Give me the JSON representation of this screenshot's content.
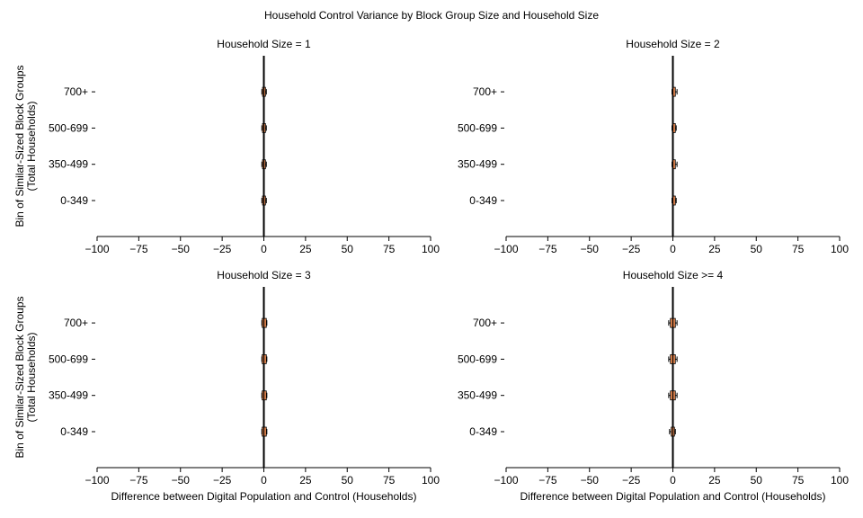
{
  "figure": {
    "title": "Household Control Variance by Block Group Size and Household Size"
  },
  "chart_data": [
    {
      "type": "boxplot",
      "title": "Household Size = 1",
      "xlabel": "",
      "ylabel": "Bin of Similar-Sized Block Groups\n(Total Households)",
      "xlim": [
        -100,
        100
      ],
      "xticks": [
        "−100",
        "−75",
        "−50",
        "−25",
        "0",
        "25",
        "50",
        "75",
        "100"
      ],
      "categories": [
        "0-349",
        "350-499",
        "500-699",
        "700+"
      ],
      "boxes": [
        {
          "category": "0-349",
          "q1": -0.8,
          "median": 0,
          "q3": 1.0,
          "whisker_low": -1.2,
          "whisker_high": 1.5
        },
        {
          "category": "350-499",
          "q1": -0.8,
          "median": 0,
          "q3": 1.0,
          "whisker_low": -1.2,
          "whisker_high": 1.5
        },
        {
          "category": "500-699",
          "q1": -0.8,
          "median": 0,
          "q3": 1.0,
          "whisker_low": -1.2,
          "whisker_high": 1.5
        },
        {
          "category": "700+",
          "q1": -0.8,
          "median": 0,
          "q3": 1.0,
          "whisker_low": -1.2,
          "whisker_high": 1.5
        }
      ]
    },
    {
      "type": "boxplot",
      "title": "Household Size = 2",
      "xlabel": "",
      "ylabel": "",
      "xlim": [
        -100,
        100
      ],
      "xticks": [
        "−100",
        "−75",
        "−50",
        "−25",
        "0",
        "25",
        "50",
        "75",
        "100"
      ],
      "categories": [
        "0-349",
        "350-499",
        "500-699",
        "700+"
      ],
      "boxes": [
        {
          "category": "0-349",
          "q1": -0.3,
          "median": 0,
          "q3": 1.5,
          "whisker_low": -0.5,
          "whisker_high": 2.0
        },
        {
          "category": "350-499",
          "q1": -0.3,
          "median": 0,
          "q3": 1.5,
          "whisker_low": -0.5,
          "whisker_high": 2.5
        },
        {
          "category": "500-699",
          "q1": -0.3,
          "median": 0,
          "q3": 1.5,
          "whisker_low": -0.5,
          "whisker_high": 2.0
        },
        {
          "category": "700+",
          "q1": -0.3,
          "median": 0,
          "q3": 1.5,
          "whisker_low": -0.5,
          "whisker_high": 2.5
        }
      ]
    },
    {
      "type": "boxplot",
      "title": "Household Size = 3",
      "xlabel": "Difference between Digital Population and Control (Households)",
      "ylabel": "Bin of Similar-Sized Block Groups\n(Total Households)",
      "xlim": [
        -100,
        100
      ],
      "xticks": [
        "−100",
        "−75",
        "−50",
        "−25",
        "0",
        "25",
        "50",
        "75",
        "100"
      ],
      "categories": [
        "0-349",
        "350-499",
        "500-699",
        "700+"
      ],
      "boxes": [
        {
          "category": "0-349",
          "q1": -1.0,
          "median": 0,
          "q3": 1.5,
          "whisker_low": -1.2,
          "whisker_high": 1.8
        },
        {
          "category": "350-499",
          "q1": -1.0,
          "median": 0,
          "q3": 1.5,
          "whisker_low": -1.2,
          "whisker_high": 1.8
        },
        {
          "category": "500-699",
          "q1": -1.0,
          "median": 0,
          "q3": 1.5,
          "whisker_low": -1.2,
          "whisker_high": 1.8
        },
        {
          "category": "700+",
          "q1": -1.0,
          "median": 0,
          "q3": 1.5,
          "whisker_low": -1.2,
          "whisker_high": 1.8
        }
      ]
    },
    {
      "type": "boxplot",
      "title": "Household Size >= 4",
      "xlabel": "Difference between Digital Population and Control (Households)",
      "ylabel": "",
      "xlim": [
        -100,
        100
      ],
      "xticks": [
        "−100",
        "−75",
        "−50",
        "−25",
        "0",
        "25",
        "50",
        "75",
        "100"
      ],
      "categories": [
        "0-349",
        "350-499",
        "500-699",
        "700+"
      ],
      "boxes": [
        {
          "category": "0-349",
          "q1": -1.0,
          "median": 0,
          "q3": 1.0,
          "whisker_low": -2.0,
          "whisker_high": 1.5
        },
        {
          "category": "350-499",
          "q1": -1.5,
          "median": 0,
          "q3": 1.5,
          "whisker_low": -2.5,
          "whisker_high": 2.5
        },
        {
          "category": "500-699",
          "q1": -1.5,
          "median": 0,
          "q3": 1.5,
          "whisker_low": -2.5,
          "whisker_high": 2.5
        },
        {
          "category": "700+",
          "q1": -1.5,
          "median": 0,
          "q3": 1.5,
          "whisker_low": -2.5,
          "whisker_high": 2.5
        }
      ]
    }
  ],
  "colors": {
    "box_fill": "#e8884f",
    "box_edge": "#000000",
    "zero_line": "#000000",
    "axis": "#000000"
  }
}
